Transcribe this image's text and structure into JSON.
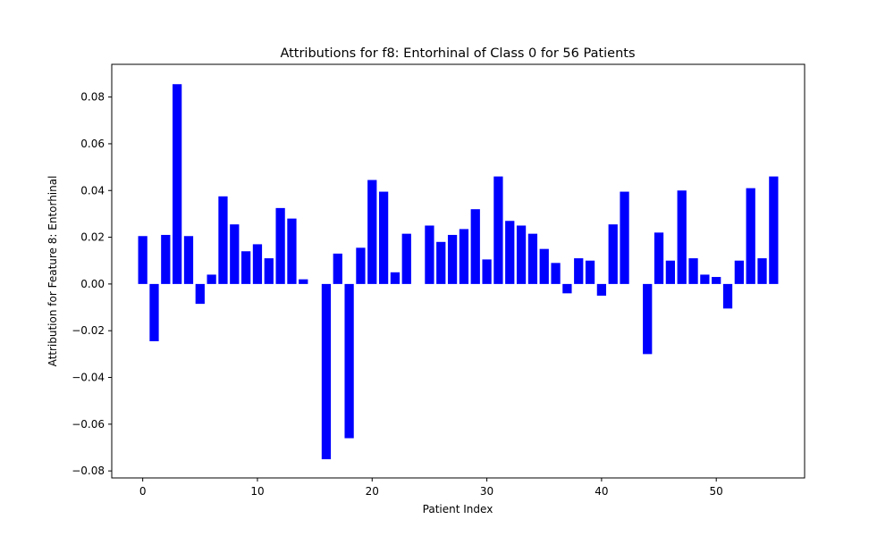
{
  "chart_data": {
    "type": "bar",
    "title": "Attributions for f8: Entorhinal of Class 0 for 56 Patients",
    "xlabel": "Patient Index",
    "ylabel": "Attribution for Feature 8: Entorhinal",
    "xlim": [
      -2.7,
      57.7
    ],
    "ylim": [
      -0.083,
      0.094
    ],
    "x_ticks": [
      0,
      10,
      20,
      30,
      40,
      50
    ],
    "y_ticks": [
      -0.08,
      -0.06,
      -0.04,
      -0.02,
      0.0,
      0.02,
      0.04,
      0.06,
      0.08
    ],
    "y_tick_labels": [
      "−0.08",
      "−0.06",
      "−0.04",
      "−0.02",
      "0.00",
      "0.02",
      "0.04",
      "0.06",
      "0.08"
    ],
    "bar_color": "#0000ff",
    "grid": false,
    "x": [
      0,
      1,
      2,
      3,
      4,
      5,
      6,
      7,
      8,
      9,
      10,
      11,
      12,
      13,
      14,
      15,
      16,
      17,
      18,
      19,
      20,
      21,
      22,
      23,
      24,
      25,
      26,
      27,
      28,
      29,
      30,
      31,
      32,
      33,
      34,
      35,
      36,
      37,
      38,
      39,
      40,
      41,
      42,
      43,
      44,
      45,
      46,
      47,
      48,
      49,
      50,
      51,
      52,
      53,
      54,
      55
    ],
    "values": [
      0.0205,
      -0.0245,
      0.021,
      0.0855,
      0.0205,
      -0.0085,
      0.004,
      0.0375,
      0.0255,
      0.014,
      0.017,
      0.011,
      0.0325,
      0.028,
      0.002,
      0.0,
      -0.075,
      0.013,
      -0.066,
      0.0155,
      0.0445,
      0.0395,
      0.005,
      0.0215,
      0.0,
      0.025,
      0.018,
      0.021,
      0.0235,
      0.032,
      0.0105,
      0.046,
      0.027,
      0.025,
      0.0215,
      0.015,
      0.009,
      -0.004,
      0.011,
      0.01,
      -0.005,
      0.0255,
      0.0395,
      0.0,
      -0.03,
      0.022,
      0.01,
      0.04,
      0.011,
      0.004,
      0.003,
      -0.0105,
      0.01,
      0.041,
      0.011,
      0.046
    ]
  }
}
